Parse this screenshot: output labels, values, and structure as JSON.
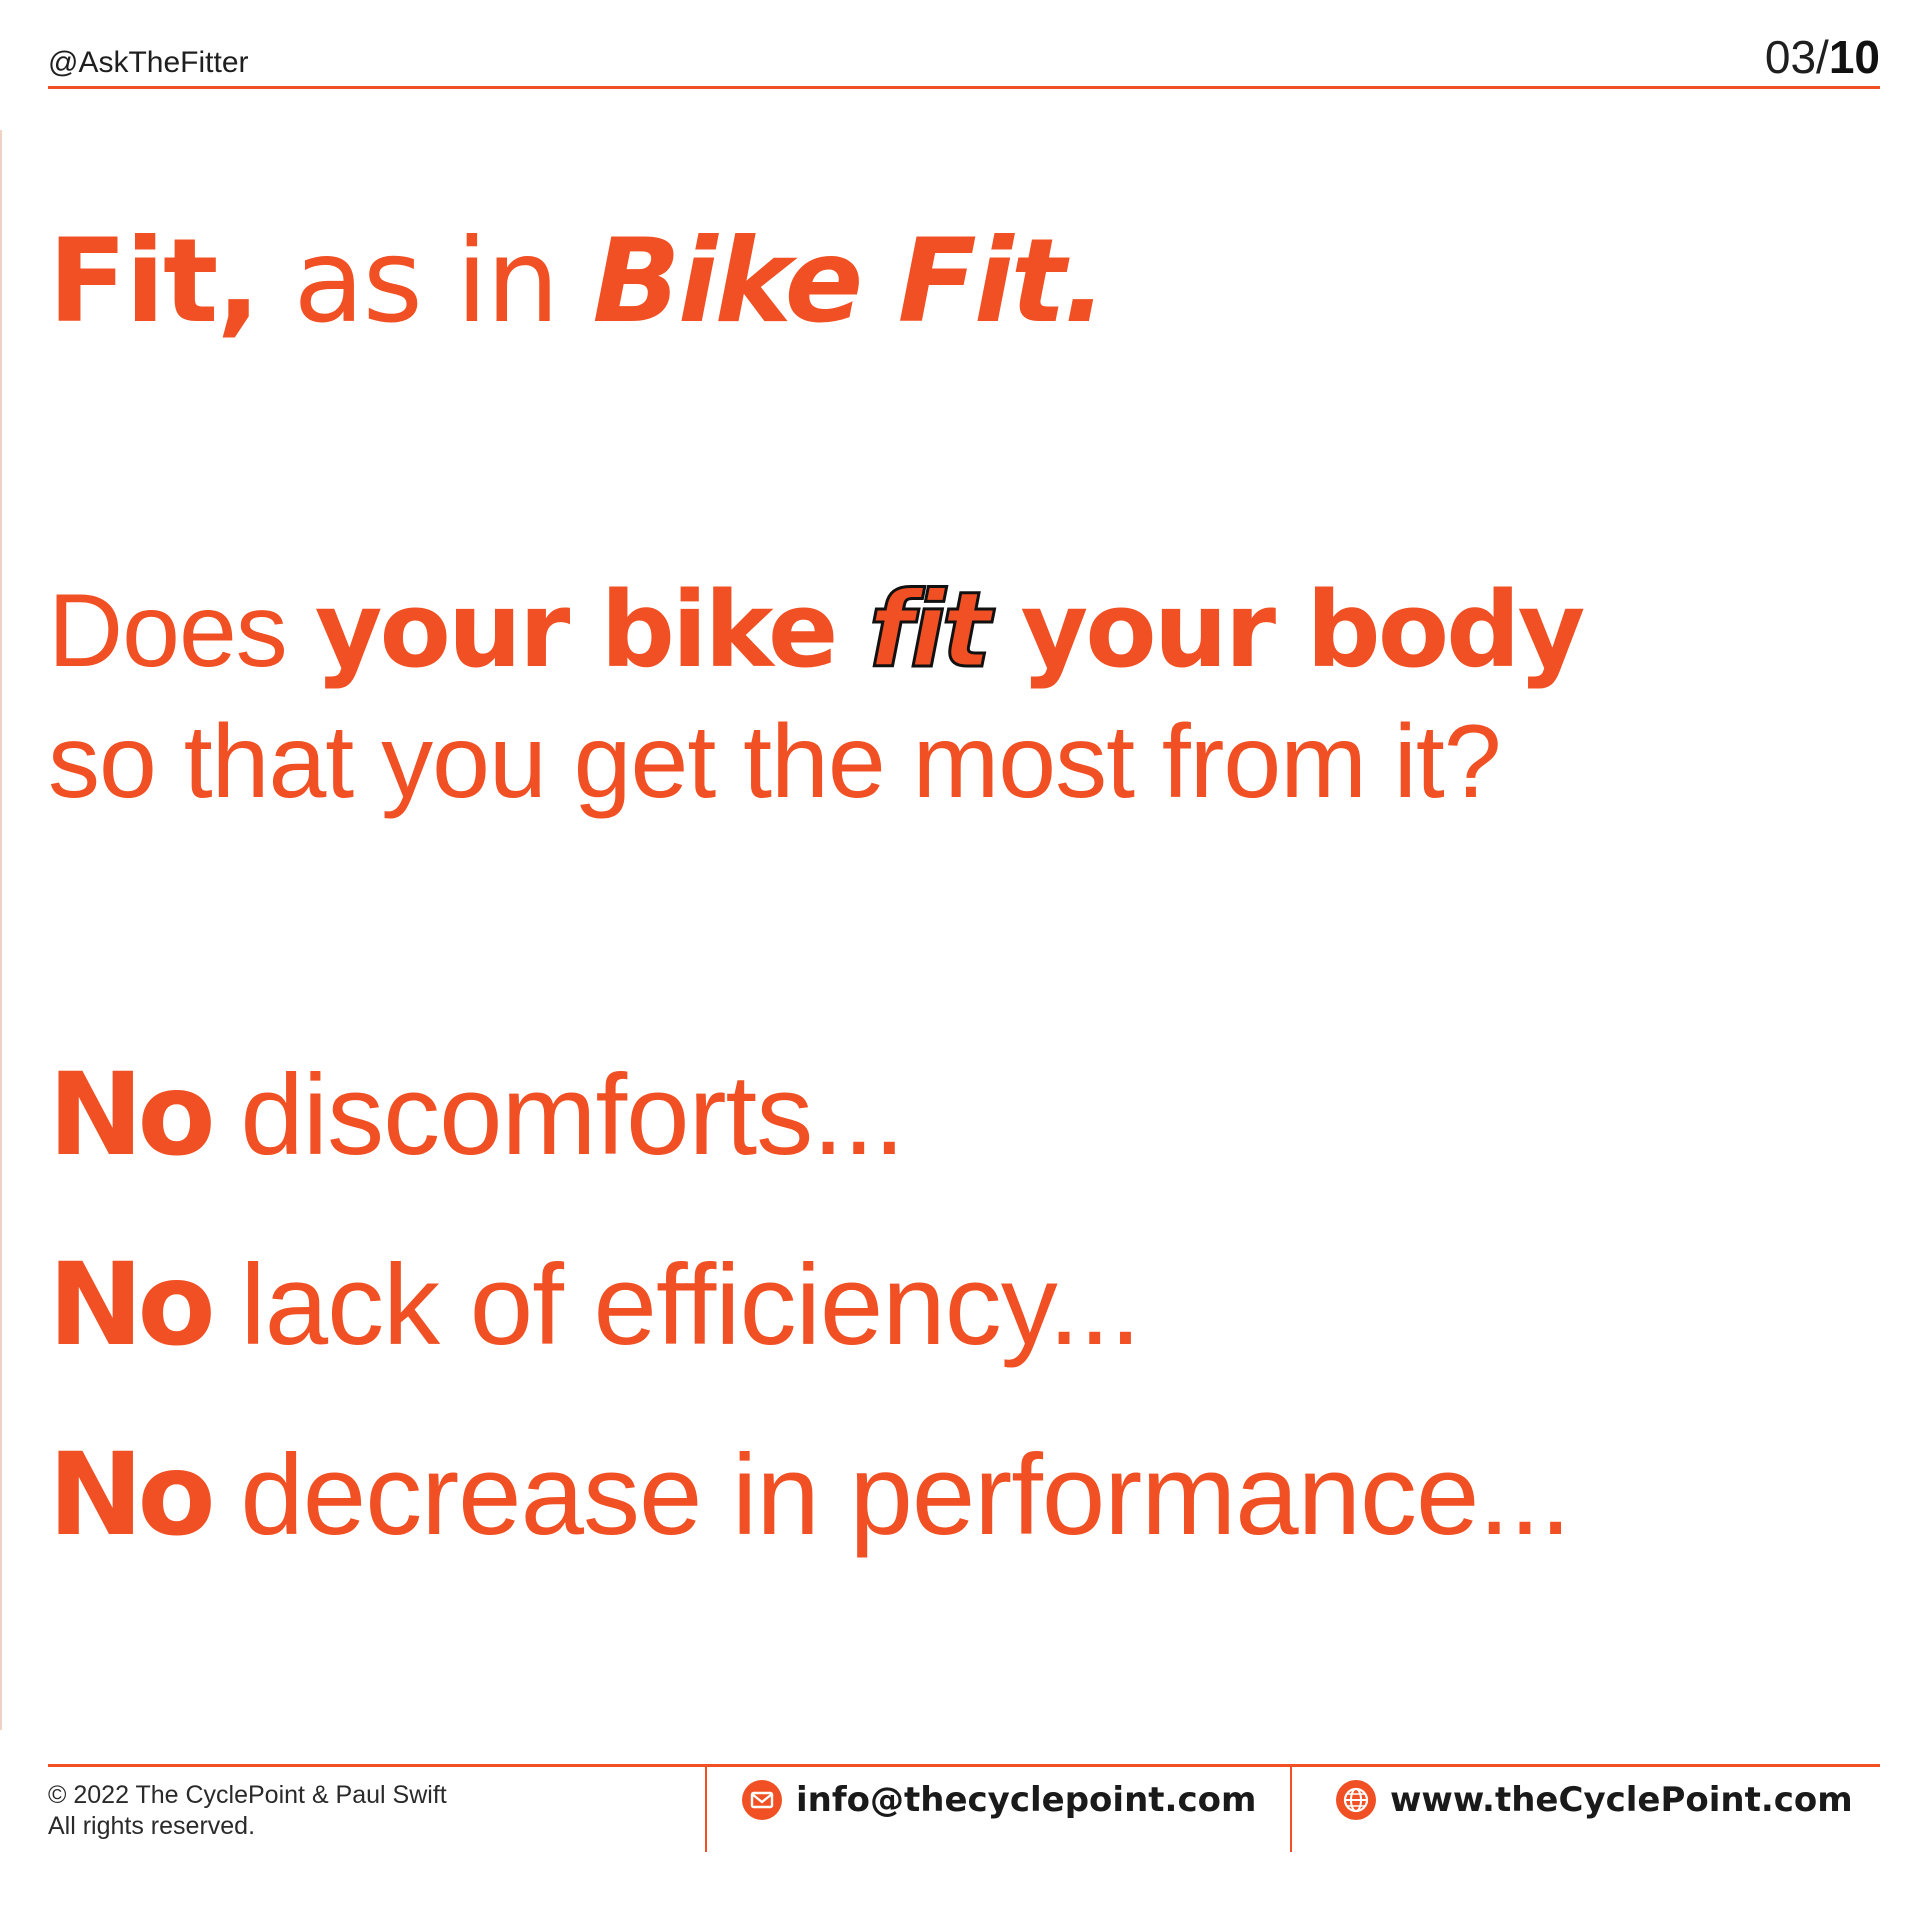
{
  "header": {
    "handle": "@AskTheFitter",
    "page_current": "03/",
    "page_total": "10"
  },
  "title": {
    "part1": "Fit,",
    "part2": " as in ",
    "part3": "Bike Fit."
  },
  "question": {
    "line1_a": "Does ",
    "line1_b": "your bike ",
    "line1_c": "fit",
    "line1_d": " your body",
    "line2": "so that you get the most from it?"
  },
  "no_items": [
    {
      "no": "No",
      "rest": " discomforts..."
    },
    {
      "no": "No",
      "rest": " lack of efficiency..."
    },
    {
      "no": "No",
      "rest": " decrease in performance..."
    }
  ],
  "footer": {
    "copyright_line1": "© 2022 The CyclePoint & Paul Swift",
    "copyright_line2": "All rights reserved.",
    "email": "info@thecyclepoint.com",
    "website": "www.theCyclePoint.com",
    "email_icon": "envelope-icon",
    "web_icon": "globe-icon"
  },
  "colors": {
    "accent": "#f05023",
    "text_dark": "#1f1f1f"
  }
}
